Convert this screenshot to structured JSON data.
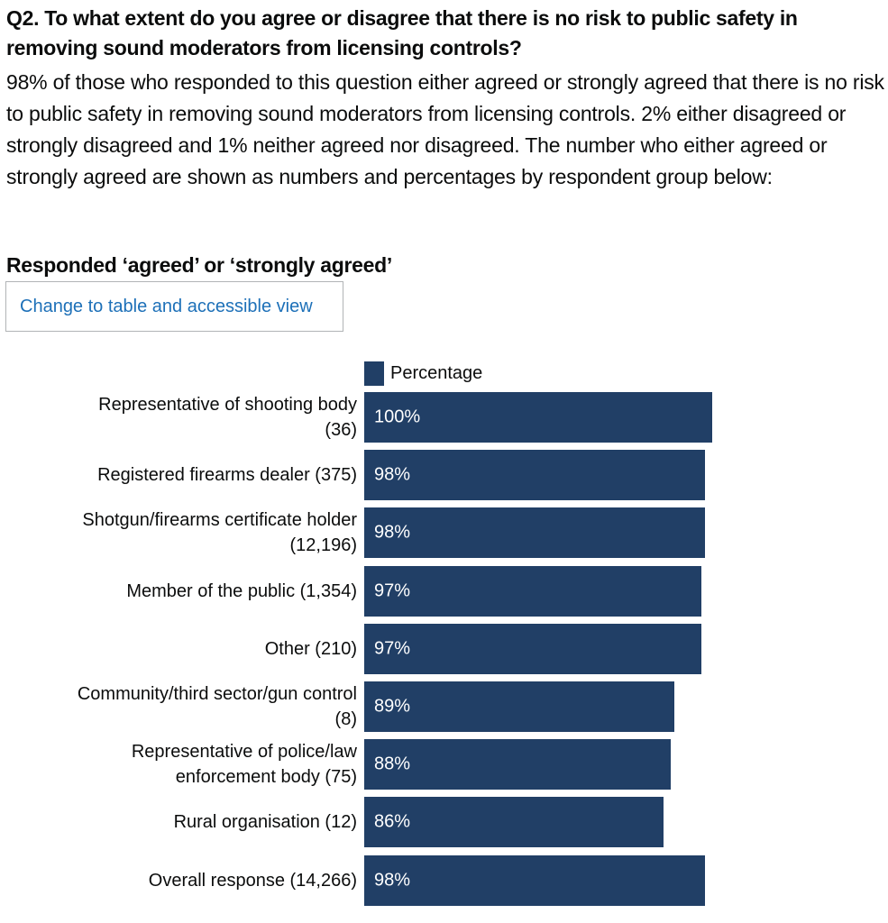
{
  "question": "Q2. To what extent do you agree or disagree that there is no risk to public safety in removing sound moderators from licensing controls?",
  "summary": "98% of those who responded to this question either agreed or strongly agreed that there is no risk to public safety in removing sound moderators from licensing controls. 2% either disagreed or strongly disagreed and 1% neither agreed nor disagreed.  The number who either agreed or strongly agreed are shown as numbers and percentages by respondent group below:",
  "chart_heading": "Responded ‘agreed’ or ‘strongly agreed’",
  "view_toggle_label": "Change to table and accessible view",
  "colors": {
    "bar": "#213f66",
    "link": "#1d70b8",
    "text": "#0b0c0c",
    "bar_text": "#ffffff"
  },
  "chart_data": {
    "type": "bar",
    "orientation": "horizontal",
    "title": "Responded ‘agreed’ or ‘strongly agreed’",
    "legend": [
      "Percentage"
    ],
    "legend_position": "top",
    "categories": [
      "Representative of shooting body (36)",
      "Registered firearms dealer (375)",
      "Shotgun/firearms certificate holder (12,196)",
      "Member of the public (1,354)",
      "Other (210)",
      "Community/third sector/gun control (8)",
      "Representative of police/law enforcement body (75)",
      "Rural organisation (12)",
      "Overall response (14,266)"
    ],
    "category_lines": [
      [
        "Representative of shooting body",
        "(36)"
      ],
      [
        "Registered firearms dealer (375)"
      ],
      [
        "Shotgun/firearms certificate holder",
        "(12,196)"
      ],
      [
        "Member of the public (1,354)"
      ],
      [
        "Other (210)"
      ],
      [
        "Community/third sector/gun control",
        "(8)"
      ],
      [
        "Representative of police/law",
        "enforcement body (75)"
      ],
      [
        "Rural organisation (12)"
      ],
      [
        "Overall response (14,266)"
      ]
    ],
    "series": [
      {
        "name": "Percentage",
        "values": [
          100,
          98,
          98,
          97,
          97,
          89,
          88,
          86,
          98
        ],
        "data_labels": [
          "100%",
          "98%",
          "98%",
          "97%",
          "97%",
          "89%",
          "88%",
          "86%",
          "98%"
        ]
      }
    ],
    "xlim": [
      0,
      100
    ],
    "grid": false
  }
}
